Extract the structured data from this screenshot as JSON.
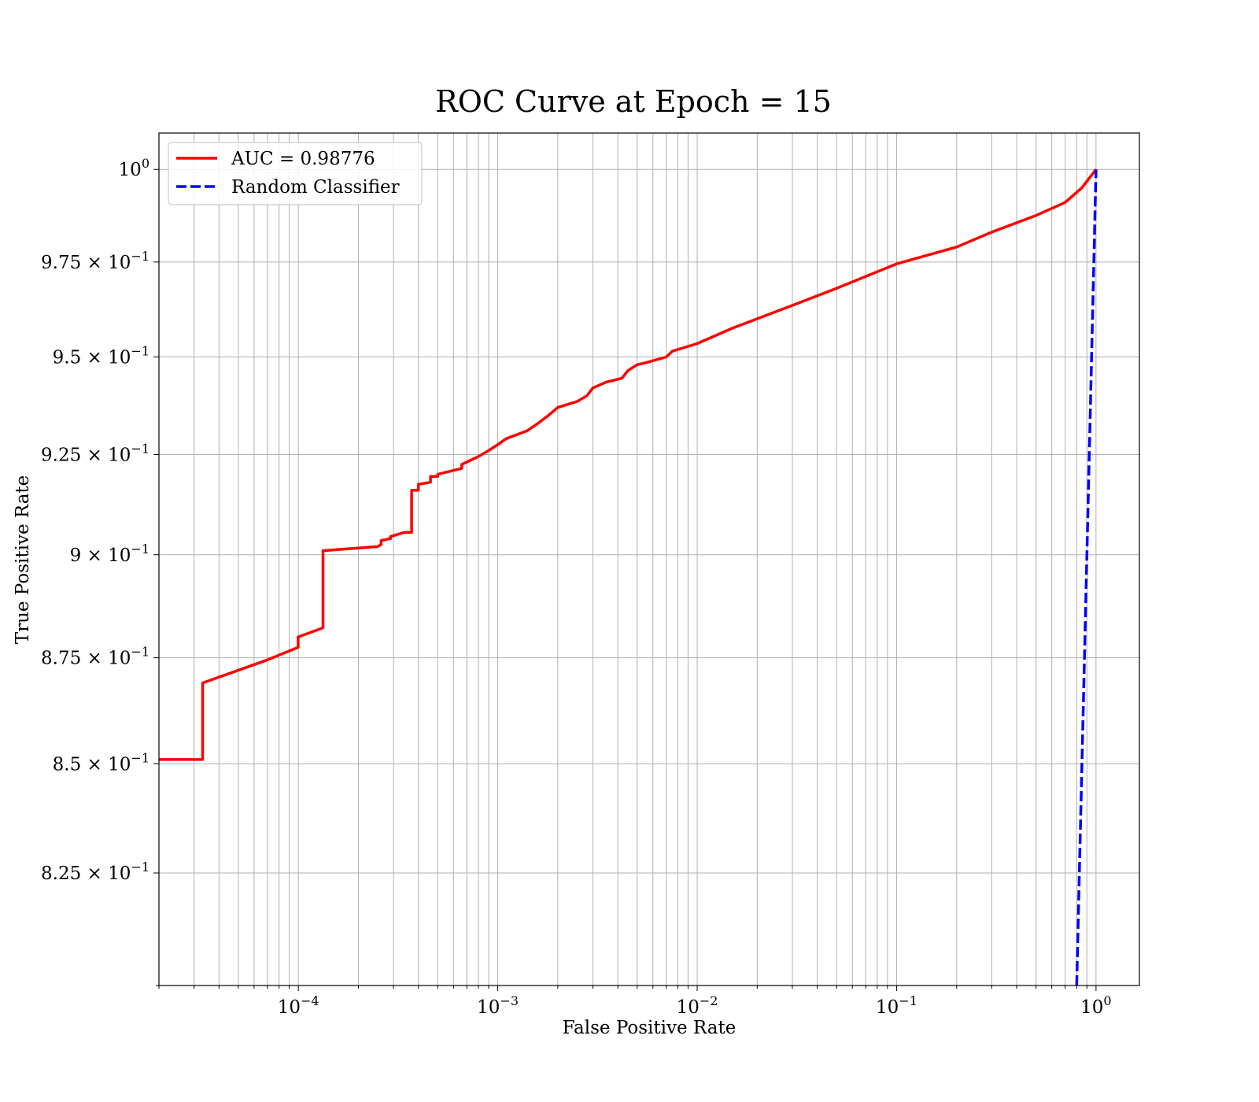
{
  "chart_data": {
    "type": "line",
    "title": "ROC Curve at Epoch = 15",
    "xlabel": "False Positive Rate",
    "ylabel": "True Positive Rate",
    "xscale": "log",
    "yscale": "log",
    "xlim": [
      2e-05,
      1.65
    ],
    "ylim": [
      0.8,
      1.01
    ],
    "grid": true,
    "grid_minor": true,
    "legend_position": "top-left",
    "x_ticks": [
      {
        "value": 0.0001,
        "base": "10",
        "exp": "−4"
      },
      {
        "value": 0.001,
        "base": "10",
        "exp": "−3"
      },
      {
        "value": 0.01,
        "base": "10",
        "exp": "−2"
      },
      {
        "value": 0.1,
        "base": "10",
        "exp": "−1"
      },
      {
        "value": 1,
        "base": "10",
        "exp": "0"
      }
    ],
    "y_ticks": [
      {
        "value": 0.825,
        "base": "8.25 × 10",
        "exp": "−1"
      },
      {
        "value": 0.85,
        "base": "8.5 × 10",
        "exp": "−1"
      },
      {
        "value": 0.875,
        "base": "8.75 × 10",
        "exp": "−1"
      },
      {
        "value": 0.9,
        "base": "9 × 10",
        "exp": "−1"
      },
      {
        "value": 0.925,
        "base": "9.25 × 10",
        "exp": "−1"
      },
      {
        "value": 0.95,
        "base": "9.5 × 10",
        "exp": "−1"
      },
      {
        "value": 0.975,
        "base": "9.75 × 10",
        "exp": "−1"
      },
      {
        "value": 1,
        "base": "10",
        "exp": "0"
      }
    ],
    "y_minor_ticks": [
      0.8
    ],
    "series": [
      {
        "name": "AUC = 0.98776",
        "color": "#ff0000",
        "style": "solid",
        "x": [
          2e-05,
          3.31e-05,
          3.31e-05,
          7e-05,
          9.98e-05,
          9.98e-05,
          0.000133,
          0.000133,
          0.00025,
          0.00026,
          0.00026,
          0.00029,
          0.00029,
          0.00034,
          0.00037,
          0.00037,
          0.0004,
          0.0004,
          0.00046,
          0.00046,
          0.0005,
          0.0005,
          0.00066,
          0.00066,
          0.0008,
          0.0009,
          0.001,
          0.0011,
          0.0014,
          0.0016,
          0.0018,
          0.002,
          0.0025,
          0.0028,
          0.003,
          0.0035,
          0.0042,
          0.0045,
          0.005,
          0.0055,
          0.007,
          0.0075,
          0.01,
          0.015,
          0.03,
          0.05,
          0.1,
          0.2,
          0.3,
          0.5,
          0.7,
          0.85,
          1.0
        ],
        "y": [
          0.851,
          0.851,
          0.869,
          0.8745,
          0.8775,
          0.88,
          0.8822,
          0.901,
          0.902,
          0.9025,
          0.9035,
          0.904,
          0.9045,
          0.9055,
          0.9055,
          0.916,
          0.916,
          0.9175,
          0.918,
          0.9195,
          0.9195,
          0.92,
          0.9215,
          0.9225,
          0.9245,
          0.926,
          0.9275,
          0.929,
          0.931,
          0.933,
          0.935,
          0.937,
          0.9385,
          0.94,
          0.942,
          0.9435,
          0.9445,
          0.9465,
          0.948,
          0.9485,
          0.95,
          0.9515,
          0.9535,
          0.9575,
          0.9635,
          0.968,
          0.9745,
          0.979,
          0.983,
          0.9875,
          0.991,
          0.995,
          1.0
        ]
      },
      {
        "name": "Random Classifier",
        "color": "#0000ff",
        "style": "dashed",
        "x": [
          0.8,
          1.0
        ],
        "y": [
          0.8,
          1.0
        ]
      }
    ]
  }
}
